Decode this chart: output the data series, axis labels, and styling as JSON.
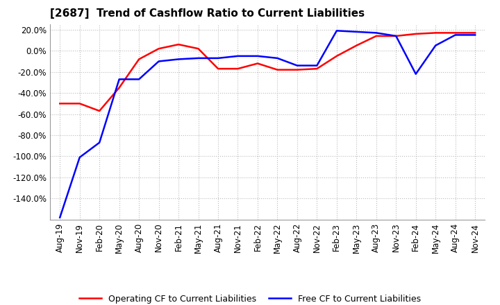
{
  "title": "[2687]  Trend of Cashflow Ratio to Current Liabilities",
  "x_labels": [
    "Aug-19",
    "Nov-19",
    "Feb-20",
    "May-20",
    "Aug-20",
    "Nov-20",
    "Feb-21",
    "May-21",
    "Aug-21",
    "Nov-21",
    "Feb-22",
    "May-22",
    "Aug-22",
    "Nov-22",
    "Feb-23",
    "May-23",
    "Aug-23",
    "Nov-23",
    "Feb-24",
    "May-24",
    "Aug-24",
    "Nov-24"
  ],
  "operating_cf": [
    -0.5,
    -0.5,
    -0.57,
    -0.35,
    -0.08,
    0.02,
    0.06,
    0.02,
    -0.17,
    -0.17,
    -0.12,
    -0.18,
    -0.18,
    -0.17,
    -0.05,
    0.05,
    0.14,
    0.14,
    0.16,
    0.17,
    0.17,
    0.17
  ],
  "free_cf": [
    -1.58,
    -1.01,
    -0.87,
    -0.27,
    -0.27,
    -0.1,
    -0.08,
    -0.07,
    -0.07,
    -0.05,
    -0.05,
    -0.07,
    -0.14,
    -0.14,
    0.19,
    0.18,
    0.17,
    0.14,
    -0.22,
    0.05,
    0.15,
    0.15
  ],
  "operating_color": "#ff0000",
  "free_color": "#0000ff",
  "ylim": [
    -1.6,
    0.25
  ],
  "yticks": [
    0.2,
    0.0,
    -0.2,
    -0.4,
    -0.6,
    -0.8,
    -1.0,
    -1.2,
    -1.4
  ],
  "legend_operating": "Operating CF to Current Liabilities",
  "legend_free": "Free CF to Current Liabilities",
  "background_color": "#ffffff",
  "plot_bg_color": "#ffffff",
  "grid_color": "#bbbbbb",
  "title_fontsize": 11,
  "tick_fontsize": 8.5,
  "line_width": 1.8
}
